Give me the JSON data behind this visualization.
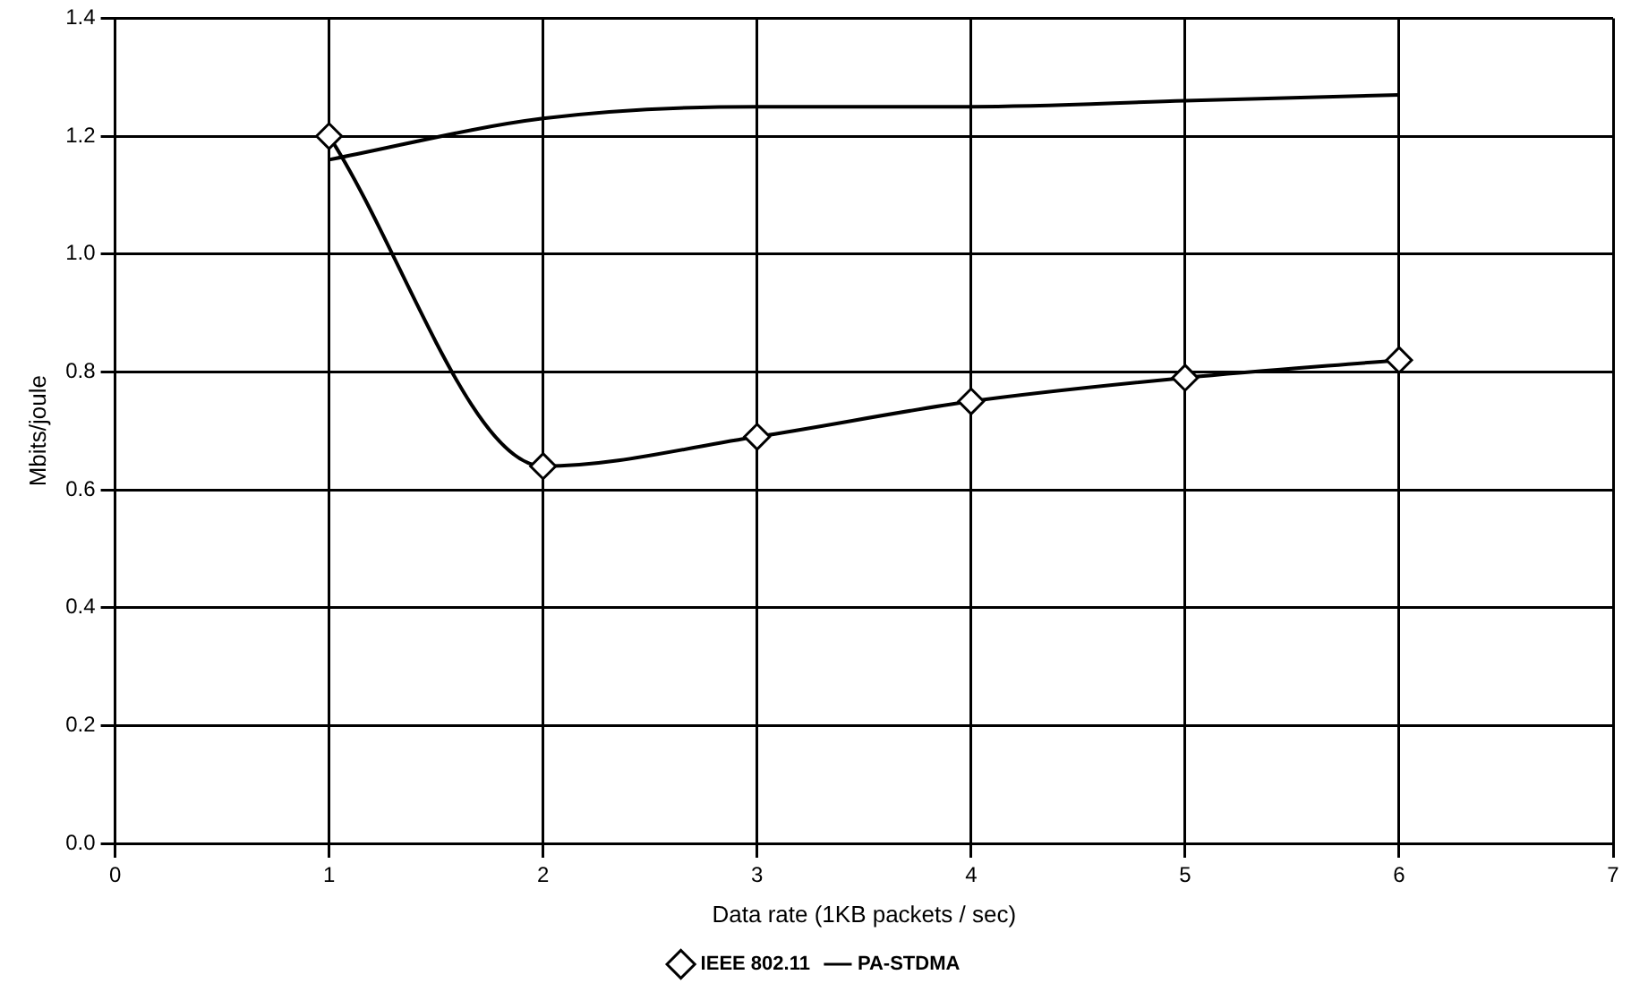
{
  "chart_data": {
    "type": "line",
    "xlabel": "Data rate (1KB packets / sec)",
    "ylabel": "Mbits/joule",
    "x": [
      1,
      2,
      3,
      4,
      5,
      6
    ],
    "series": [
      {
        "name": "IEEE 802.11",
        "color": "#000000",
        "marker": "diamond",
        "values": [
          1.2,
          0.64,
          0.69,
          0.75,
          0.79,
          0.82
        ]
      },
      {
        "name": "PA-STDMA",
        "color": "#000000",
        "marker": "none",
        "values": [
          1.16,
          1.23,
          1.25,
          1.25,
          1.26,
          1.27
        ]
      }
    ],
    "xlim": [
      0,
      7
    ],
    "xticks": [
      0,
      1,
      2,
      3,
      4,
      5,
      6,
      7
    ],
    "ylim": [
      0,
      1.4
    ],
    "yticks": [
      {
        "value": 0,
        "label": "0.0"
      },
      0.2,
      0.4,
      0.6,
      0.8,
      {
        "value": 1,
        "label": "1.0"
      },
      1.2,
      1.4
    ],
    "grid": true,
    "legend": "bottom"
  }
}
